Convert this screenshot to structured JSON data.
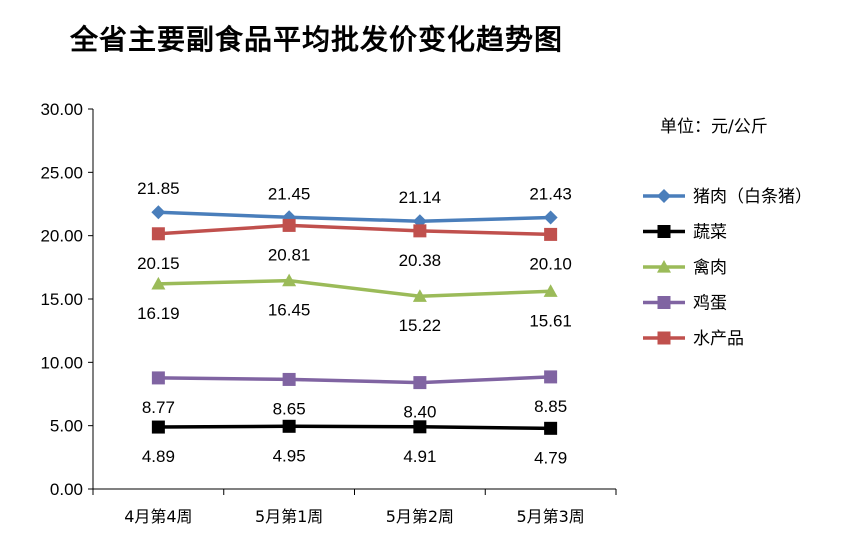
{
  "chart_data": {
    "type": "line",
    "title": "全省主要副食品平均批发价变化趋势图",
    "unit_label": "单位：元/公斤",
    "categories": [
      "4月第4周",
      "5月第1周",
      "5月第2周",
      "5月第3周"
    ],
    "ylim": [
      0,
      30
    ],
    "yticks": [
      "0.00",
      "5.00",
      "10.00",
      "15.00",
      "20.00",
      "25.00",
      "30.00"
    ],
    "legend_position": "right",
    "grid": false,
    "series": [
      {
        "name": "猪肉（白条猪）",
        "values": [
          21.85,
          21.45,
          21.14,
          21.43
        ],
        "labels": [
          "21.85",
          "21.45",
          "21.14",
          "21.43"
        ],
        "color": "#4a7ebb",
        "marker": "diamond",
        "label_pos": "above"
      },
      {
        "name": "蔬菜",
        "values": [
          4.89,
          4.95,
          4.91,
          4.79
        ],
        "labels": [
          "4.89",
          "4.95",
          "4.91",
          "4.79"
        ],
        "color": "#000000",
        "marker": "square",
        "label_pos": "below"
      },
      {
        "name": "禽肉",
        "values": [
          16.19,
          16.45,
          15.22,
          15.61
        ],
        "labels": [
          "16.19",
          "16.45",
          "15.22",
          "15.61"
        ],
        "color": "#9bbb59",
        "marker": "triangle",
        "label_pos": "below"
      },
      {
        "name": "鸡蛋",
        "values": [
          8.77,
          8.65,
          8.4,
          8.85
        ],
        "labels": [
          "8.77",
          "8.65",
          "8.40",
          "8.85"
        ],
        "color": "#8064a2",
        "marker": "square",
        "label_pos": "below"
      },
      {
        "name": "水产品",
        "values": [
          20.15,
          20.81,
          20.38,
          20.1
        ],
        "labels": [
          "20.15",
          "20.81",
          "20.38",
          "20.10"
        ],
        "color": "#c0504d",
        "marker": "square",
        "label_pos": "below"
      }
    ]
  }
}
